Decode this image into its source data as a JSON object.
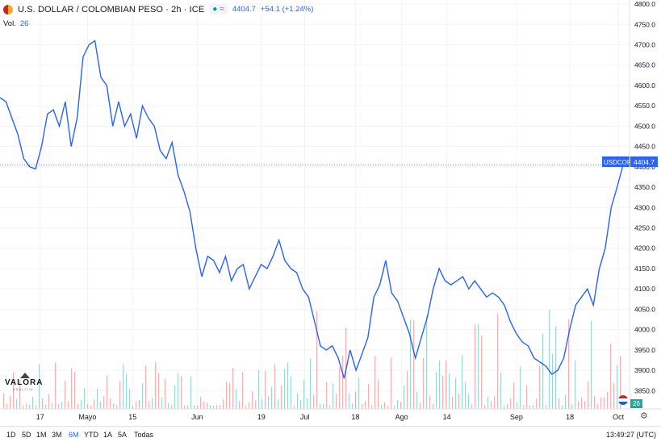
{
  "header": {
    "title": "U.S. DOLLAR / COLOMBIAN PESO · 2h · ICE",
    "price": "4404.7",
    "change": "+54.1 (+1.24%)",
    "badge_wave": "≈"
  },
  "volume": {
    "label": "Vol.",
    "value": "26"
  },
  "logo": {
    "name": "VALORA",
    "sub": "ANALITIK"
  },
  "price_label": {
    "ticker": "USDCOP",
    "value": "4404.7"
  },
  "vol_badge": "26",
  "ranges": [
    "1D",
    "5D",
    "1M",
    "3M",
    "6M",
    "YTD",
    "1A",
    "5A",
    "Todas"
  ],
  "active_range": "6M",
  "clock": "13:49:27 (UTC)",
  "colors": {
    "line": "#2962ff",
    "vol_up": "#26a69a",
    "vol_down": "#ef5350",
    "grid": "#f0f3fa"
  },
  "chart_data": {
    "type": "line",
    "y_ticks": [
      3850,
      3900,
      3950,
      4000,
      4050,
      4100,
      4150,
      4200,
      4250,
      4300,
      4350,
      4400,
      4450,
      4500,
      4550,
      4600,
      4650,
      4700,
      4750,
      4800
    ],
    "ylim": [
      3805,
      4810
    ],
    "x_ticks": [
      {
        "label": "17",
        "x": 0.072
      },
      {
        "label": "Mayo",
        "x": 0.157
      },
      {
        "label": "15",
        "x": 0.238
      },
      {
        "label": "Jun",
        "x": 0.354
      },
      {
        "label": "19",
        "x": 0.469
      },
      {
        "label": "Jul",
        "x": 0.547
      },
      {
        "label": "18",
        "x": 0.638
      },
      {
        "label": "Ago",
        "x": 0.721
      },
      {
        "label": "14",
        "x": 0.802
      },
      {
        "label": "Sep",
        "x": 0.927
      },
      {
        "label": "18",
        "x": 1.023
      },
      {
        "label": "Oct",
        "x": 1.11
      }
    ],
    "series": [
      {
        "values": [
          4570,
          4560,
          4520,
          4480,
          4420,
          4400,
          4395,
          4450,
          4530,
          4540,
          4500,
          4560,
          4450,
          4520,
          4670,
          4700,
          4710,
          4620,
          4600,
          4500,
          4560,
          4500,
          4530,
          4470,
          4550,
          4520,
          4500,
          4440,
          4420,
          4460,
          4380,
          4340,
          4290,
          4200,
          4130,
          4180,
          4170,
          4140,
          4180,
          4120,
          4150,
          4160,
          4100,
          4130,
          4160,
          4150,
          4180,
          4220,
          4170,
          4150,
          4140,
          4100,
          4080,
          4020,
          3960,
          3950,
          3960,
          3930,
          3880,
          3950,
          3900,
          3940,
          3980,
          4080,
          4110,
          4170,
          4090,
          4070,
          4030,
          3990,
          3930,
          3980,
          4030,
          4100,
          4150,
          4120,
          4110,
          4120,
          4130,
          4100,
          4120,
          4100,
          4080,
          4090,
          4080,
          4060,
          4020,
          3990,
          3970,
          3960,
          3930,
          3920,
          3910,
          3890,
          3900,
          3930,
          4000,
          4060,
          4080,
          4100,
          4060,
          4150,
          4200,
          4300,
          4350,
          4404.7
        ]
      }
    ],
    "x_range": [
      0,
      1.13
    ]
  }
}
